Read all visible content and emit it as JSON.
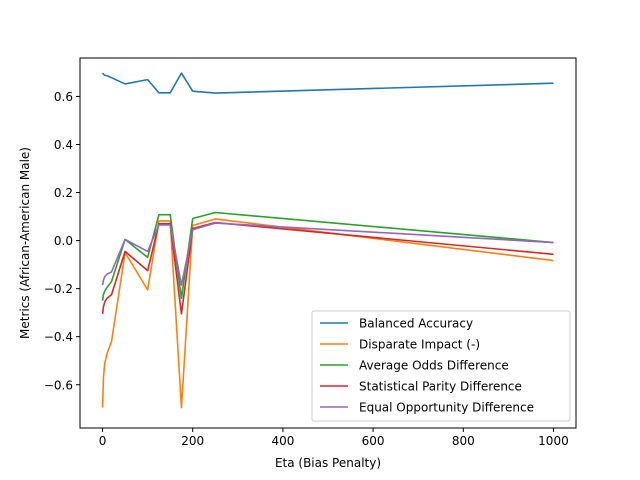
{
  "chart_data": {
    "type": "line",
    "title": "",
    "xlabel": "Eta (Bias Penalty)",
    "ylabel": "Metrics (African-American Male)",
    "xlim": [
      -50,
      1050
    ],
    "ylim": [
      -0.78,
      0.76
    ],
    "xticks": [
      0,
      200,
      400,
      600,
      800,
      1000
    ],
    "yticks": [
      -0.6,
      -0.4,
      -0.2,
      0.0,
      0.2,
      0.4,
      0.6
    ],
    "xtick_labels": [
      "0",
      "200",
      "400",
      "600",
      "800",
      "1000"
    ],
    "ytick_labels": [
      "−0.6",
      "−0.4",
      "−0.2",
      "0.0",
      "0.2",
      "0.4",
      "0.6"
    ],
    "grid": false,
    "legend_position": "lower-right",
    "x": [
      0,
      2,
      5,
      10,
      20,
      50,
      100,
      125,
      150,
      175,
      200,
      250,
      1000
    ],
    "series": [
      {
        "name": "Balanced Accuracy",
        "color": "#1f77b4",
        "values": [
          0.697,
          0.693,
          0.688,
          0.686,
          0.678,
          0.652,
          0.67,
          0.615,
          0.615,
          0.697,
          0.622,
          0.614,
          0.655
        ]
      },
      {
        "name": "Disparate Impact (-)",
        "color": "#ff7f0e",
        "values": [
          -0.695,
          -0.57,
          -0.51,
          -0.47,
          -0.42,
          -0.05,
          -0.205,
          0.082,
          0.082,
          -0.695,
          0.063,
          0.09,
          -0.083
        ]
      },
      {
        "name": "Average Odds Difference",
        "color": "#2ca02c",
        "values": [
          -0.25,
          -0.225,
          -0.21,
          -0.195,
          -0.17,
          0.005,
          -0.07,
          0.108,
          0.108,
          -0.24,
          0.092,
          0.117,
          -0.008
        ]
      },
      {
        "name": "Statistical Parity Difference",
        "color": "#d62728",
        "values": [
          -0.305,
          -0.275,
          -0.255,
          -0.24,
          -0.225,
          -0.045,
          -0.125,
          0.07,
          0.07,
          -0.305,
          0.05,
          0.075,
          -0.057
        ]
      },
      {
        "name": "Equal Opportunity Difference",
        "color": "#9467bd",
        "values": [
          -0.185,
          -0.165,
          -0.15,
          -0.14,
          -0.13,
          0.005,
          -0.045,
          0.065,
          0.065,
          -0.185,
          0.045,
          0.073,
          -0.008
        ]
      }
    ]
  }
}
